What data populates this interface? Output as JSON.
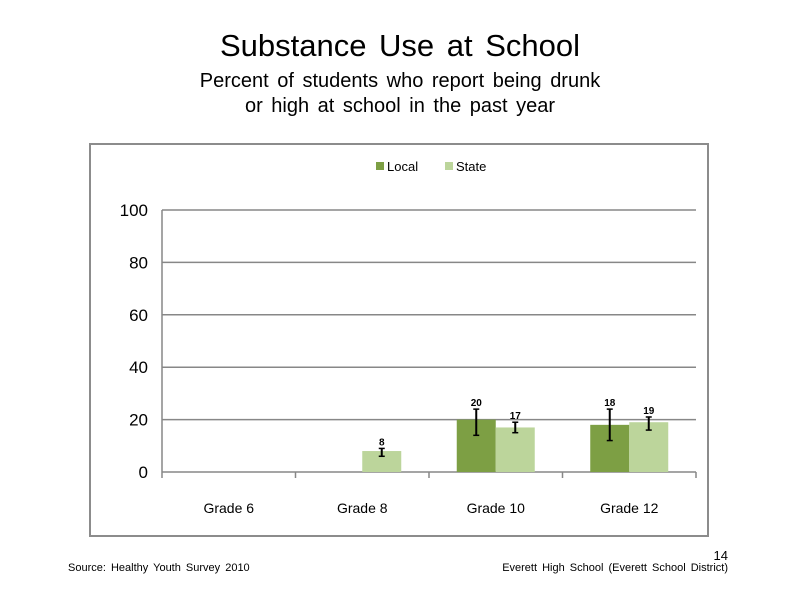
{
  "slide": {
    "title": "Substance Use at School",
    "subtitle": "Percent of students who report being drunk or high at school in the past year",
    "source": "Source: Healthy Youth Survey 2010",
    "school": "Everett High School (Everett School District)",
    "page_number": "14"
  },
  "chart_data": {
    "type": "bar",
    "title": "",
    "xlabel": "",
    "ylabel": "",
    "categories": [
      "Grade 6",
      "Grade 8",
      "Grade 10",
      "Grade 12"
    ],
    "ylim": [
      0,
      100
    ],
    "yticks": [
      0,
      20,
      40,
      60,
      80,
      100
    ],
    "grid": true,
    "legend_position": "top",
    "series": [
      {
        "name": "Local",
        "color": "#7d9f44",
        "values": [
          null,
          null,
          20,
          18
        ],
        "labels": [
          "",
          "",
          "20",
          "18"
        ],
        "error_low": [
          null,
          null,
          14,
          12
        ],
        "error_high": [
          null,
          null,
          24,
          24
        ]
      },
      {
        "name": "State",
        "color": "#bcd59b",
        "values": [
          null,
          8,
          17,
          19
        ],
        "labels": [
          "",
          "8",
          "17",
          "19"
        ],
        "error_low": [
          null,
          6,
          15,
          16
        ],
        "error_high": [
          null,
          9,
          19,
          21
        ]
      }
    ]
  }
}
